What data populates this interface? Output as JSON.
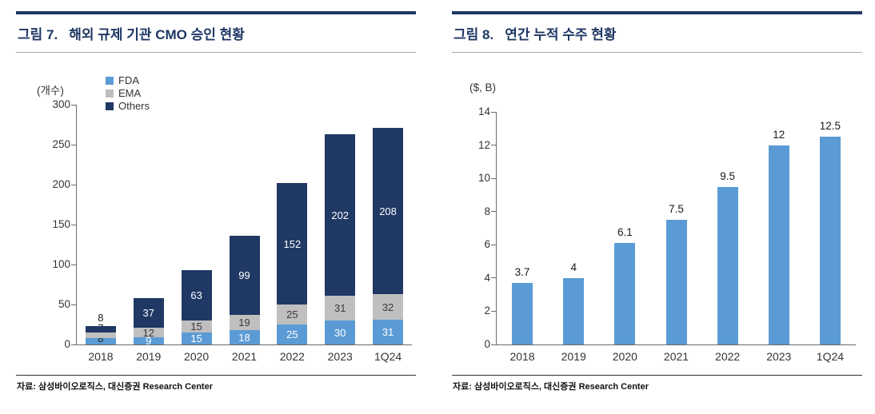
{
  "page": {
    "background": "#ffffff"
  },
  "figure7": {
    "fig_label": "그림 7.",
    "title": "해외 규제 기관 CMO 승인 현황",
    "unit_label": "(개수)",
    "source": "자료: 삼성바이오로직스, 대신증권 Research Center",
    "chart_data": {
      "type": "bar",
      "stacked": true,
      "title": "해외 규제 기관 CMO 승인 현황",
      "ylabel": "(개수)",
      "ylim": [
        0,
        300
      ],
      "ytick_step": 50,
      "grid": false,
      "legend_position": "top-left-vertical",
      "categories": [
        "2018",
        "2019",
        "2020",
        "2021",
        "2022",
        "2023",
        "1Q24"
      ],
      "series": [
        {
          "name": "FDA",
          "color": "#5B9BD5",
          "label_color": "#FFFFFF",
          "values": [
            8,
            9,
            15,
            18,
            25,
            30,
            31
          ]
        },
        {
          "name": "EMA",
          "color": "#BFBFBF",
          "label_color": "#3A3A3A",
          "values": [
            7,
            12,
            15,
            19,
            25,
            31,
            32
          ]
        },
        {
          "name": "Others",
          "color": "#1F3864",
          "label_color": "#FFFFFF",
          "values": [
            8,
            37,
            63,
            99,
            152,
            202,
            208
          ]
        }
      ],
      "totals": [
        23,
        58,
        93,
        136,
        202,
        263,
        271
      ]
    }
  },
  "figure8": {
    "fig_label": "그림 8.",
    "title": "연간 누적 수주 현황",
    "unit_label": "($, B)",
    "source": "자료: 삼성바이오로직스, 대신증권 Research Center",
    "chart_data": {
      "type": "bar",
      "stacked": false,
      "title": "연간 누적 수주 현황",
      "ylabel": "($, B)",
      "ylim": [
        0,
        14
      ],
      "ytick_step": 2,
      "grid": false,
      "bar_color": "#5B9BD5",
      "categories": [
        "2018",
        "2019",
        "2020",
        "2021",
        "2022",
        "2023",
        "1Q24"
      ],
      "values": [
        3.7,
        4,
        6.1,
        7.5,
        9.5,
        12,
        12.5
      ]
    }
  }
}
